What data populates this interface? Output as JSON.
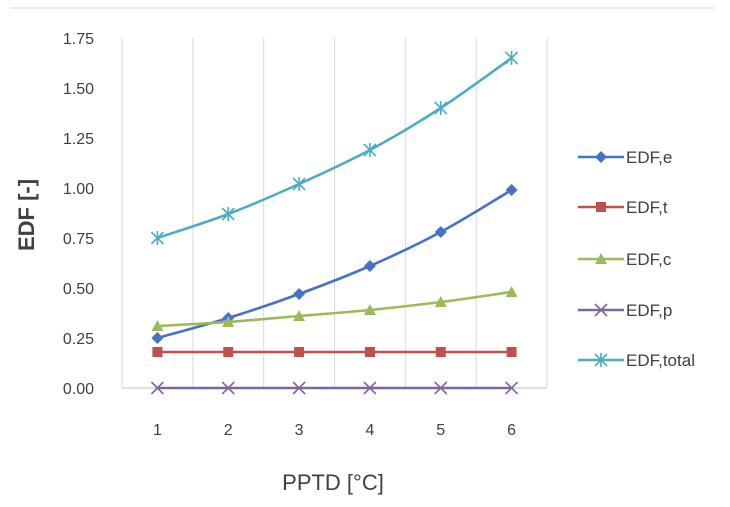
{
  "chart_data": {
    "type": "line",
    "xlabel": "PPTD [°C]",
    "ylabel": "EDF [-]",
    "x": [
      1,
      2,
      3,
      4,
      5,
      6
    ],
    "xticks": [
      "1",
      "2",
      "3",
      "4",
      "5",
      "6"
    ],
    "ylim": [
      0,
      1.75
    ],
    "yticks": [
      "0.00",
      "0.25",
      "0.50",
      "0.75",
      "1.00",
      "1.25",
      "1.50",
      "1.75"
    ],
    "grid": "vertical",
    "legend_position": "right",
    "series": [
      {
        "name": "EDF,e",
        "values": [
          0.25,
          0.35,
          0.47,
          0.61,
          0.78,
          0.99
        ],
        "color": "#4472c4",
        "marker": "diamond"
      },
      {
        "name": "EDF,t",
        "values": [
          0.18,
          0.18,
          0.18,
          0.18,
          0.18,
          0.18
        ],
        "color": "#c0504d",
        "marker": "square"
      },
      {
        "name": "EDF,c",
        "values": [
          0.31,
          0.33,
          0.36,
          0.39,
          0.43,
          0.48
        ],
        "color": "#9bbb59",
        "marker": "triangle"
      },
      {
        "name": "EDF,p",
        "values": [
          0.0,
          0.0,
          0.0,
          0.0,
          0.0,
          0.0
        ],
        "color": "#8064a2",
        "marker": "x"
      },
      {
        "name": "EDF,total",
        "values": [
          0.75,
          0.87,
          1.02,
          1.19,
          1.4,
          1.65
        ],
        "color": "#4bacc6",
        "marker": "star"
      }
    ]
  }
}
